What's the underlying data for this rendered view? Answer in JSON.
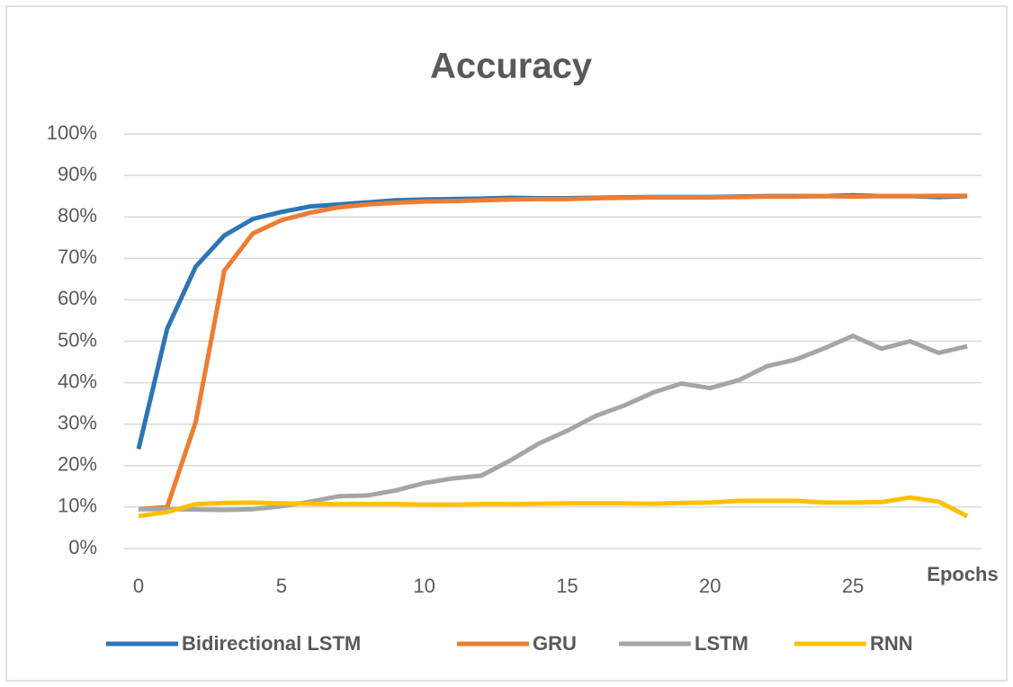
{
  "chart_data": {
    "type": "line",
    "title": "Accuracy",
    "x_label": "Epochs",
    "x": [
      0,
      1,
      2,
      3,
      4,
      5,
      6,
      7,
      8,
      9,
      10,
      11,
      12,
      13,
      14,
      15,
      16,
      17,
      18,
      19,
      20,
      21,
      22,
      23,
      24,
      25,
      26,
      27,
      28,
      29
    ],
    "series": [
      {
        "name": "Bidirectional LSTM",
        "color": "#2e75b6",
        "values": [
          24,
          53,
          68,
          75.5,
          79.5,
          81.2,
          82.5,
          83,
          83.5,
          84,
          84.2,
          84.3,
          84.4,
          84.6,
          84.5,
          84.5,
          84.6,
          84.7,
          84.8,
          84.8,
          84.8,
          84.9,
          85,
          85,
          85,
          85.2,
          85,
          85,
          84.8,
          85
        ]
      },
      {
        "name": "GRU",
        "color": "#ed7d31",
        "values": [
          9.5,
          10,
          30.5,
          67,
          76,
          79.2,
          81,
          82.3,
          83,
          83.4,
          83.7,
          83.8,
          84,
          84.2,
          84.3,
          84.3,
          84.5,
          84.6,
          84.7,
          84.7,
          84.7,
          84.8,
          84.9,
          84.9,
          85,
          84.9,
          85,
          85,
          85.1,
          85.1
        ]
      },
      {
        "name": "LSTM",
        "color": "#a5a5a5",
        "values": [
          9.5,
          9.5,
          9.4,
          9.3,
          9.5,
          10.2,
          11.3,
          12.6,
          12.8,
          14,
          15.8,
          16.9,
          17.6,
          21.2,
          25.3,
          28.4,
          32,
          34.5,
          37.6,
          39.8,
          38.7,
          40.6,
          44,
          45.6,
          48.3,
          51.3,
          48.2,
          50,
          47.2,
          48.8
        ]
      },
      {
        "name": "RNN",
        "color": "#ffc000",
        "values": [
          7.8,
          8.8,
          10.7,
          11,
          11.1,
          10.9,
          10.8,
          10.7,
          10.7,
          10.7,
          10.6,
          10.6,
          10.7,
          10.7,
          10.8,
          10.9,
          10.9,
          10.9,
          10.8,
          11,
          11.1,
          11.5,
          11.5,
          11.5,
          11.1,
          11.1,
          11.2,
          12.3,
          11.3,
          7.8
        ]
      }
    ],
    "xlim": [
      0,
      29.5
    ],
    "xticks": [
      0,
      5,
      10,
      15,
      20,
      25
    ],
    "ylim": [
      0,
      100
    ],
    "yticks": [
      {
        "value": 0,
        "label": "0%"
      },
      {
        "value": 10,
        "label": "10%"
      },
      {
        "value": 20,
        "label": "20%"
      },
      {
        "value": 30,
        "label": "30%"
      },
      {
        "value": 40,
        "label": "40%"
      },
      {
        "value": 50,
        "label": "50%"
      },
      {
        "value": 60,
        "label": "60%"
      },
      {
        "value": 70,
        "label": "70%"
      },
      {
        "value": 80,
        "label": "80%"
      },
      {
        "value": 90,
        "label": "90%"
      },
      {
        "value": 100,
        "label": "100%"
      }
    ],
    "grid": true,
    "legend": "bottom"
  }
}
